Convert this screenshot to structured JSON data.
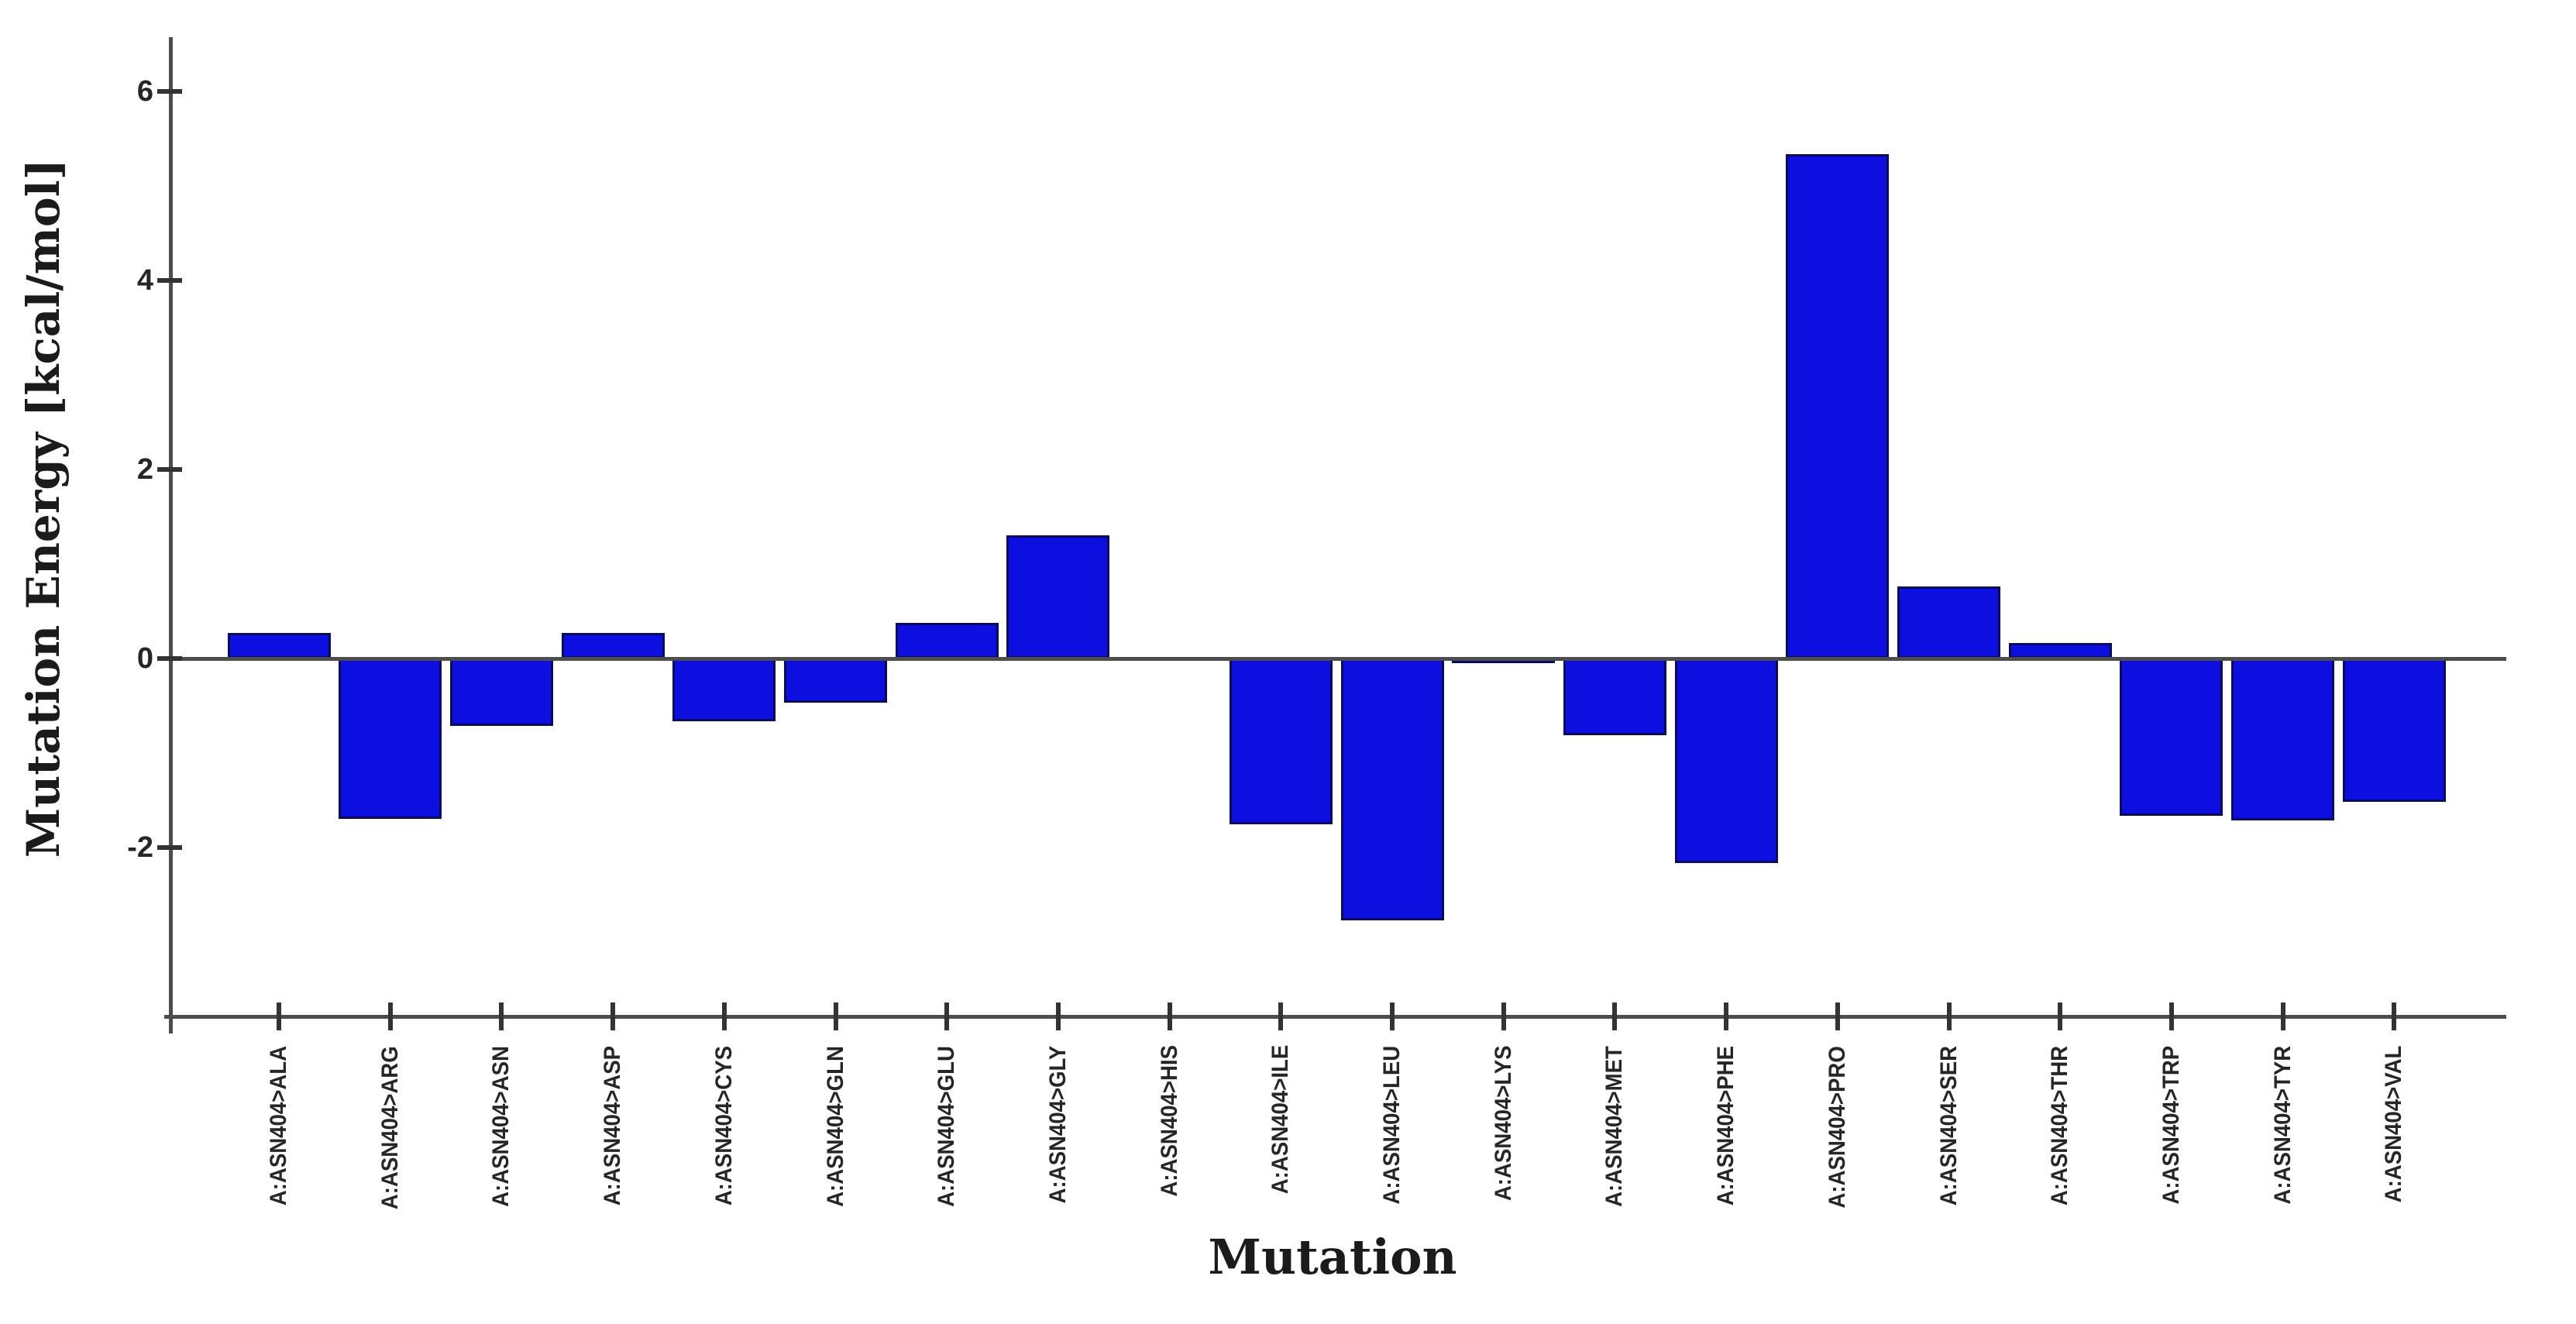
{
  "page": {
    "background_color": "#ffffff",
    "kind": "bar-chart-figure"
  },
  "chart_data": {
    "type": "bar",
    "title": "",
    "xlabel": "Mutation",
    "ylabel": "Mutation Energy [kcal/mol]",
    "categories": [
      "A:ASN404>ALA",
      "A:ASN404>ARG",
      "A:ASN404>ASN",
      "A:ASN404>ASP",
      "A:ASN404>CYS",
      "A:ASN404>GLN",
      "A:ASN404>GLU",
      "A:ASN404>GLY",
      "A:ASN404>HIS",
      "A:ASN404>ILE",
      "A:ASN404>LEU",
      "A:ASN404>LYS",
      "A:ASN404>MET",
      "A:ASN404>PHE",
      "A:ASN404>PRO",
      "A:ASN404>SER",
      "A:ASN404>THR",
      "A:ASN404>TRP",
      "A:ASN404>TYR",
      "A:ASN404>VAL"
    ],
    "values": [
      0.27,
      -1.7,
      -0.71,
      0.27,
      -0.66,
      -0.47,
      0.38,
      1.3,
      -0.01,
      -1.75,
      -2.77,
      -0.04,
      -0.81,
      -2.16,
      5.34,
      0.76,
      0.16,
      -1.66,
      -1.71,
      -1.52
    ],
    "y_ticks": [
      6,
      4,
      2,
      0,
      -2
    ],
    "y_tick_labels": [
      "6",
      "4",
      "2",
      "0",
      "-2"
    ],
    "ylim": [
      -3.8,
      6.6
    ],
    "grid": false,
    "legend": null,
    "bar_color": "#0d0fe0",
    "bar_border_color": "#0a0a5e",
    "axis_color": "#4d4d4d",
    "tick_color": "#333333",
    "label_color": "#262626",
    "title_color": "#1b1b1b"
  }
}
